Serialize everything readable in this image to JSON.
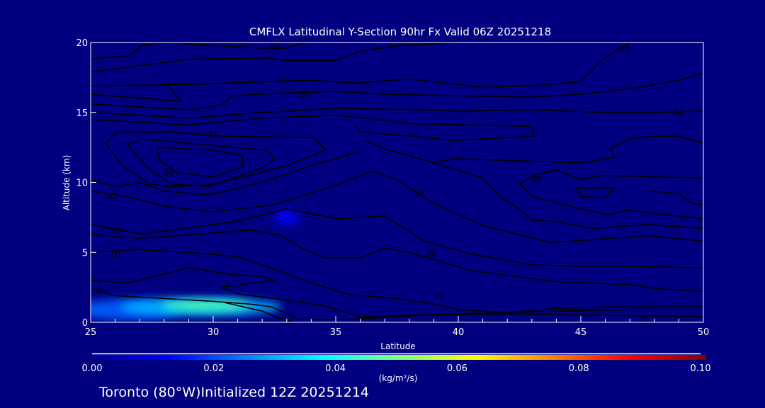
{
  "chart_data": {
    "type": "heatmap",
    "title": "CMFLX Latitudinal Y-Section 90hr  Fx Valid 06Z 20251218",
    "xlabel": "Latitude",
    "ylabel": "Altitude (km)",
    "xlim": [
      25,
      50
    ],
    "ylim": [
      0,
      20
    ],
    "xticks": [
      25,
      30,
      35,
      40,
      45,
      50
    ],
    "xtick_labels": [
      "25",
      "30",
      "35",
      "40",
      "45",
      "50"
    ],
    "yticks": [
      0,
      5,
      10,
      15,
      20
    ],
    "ytick_labels": [
      "0",
      "5",
      "10",
      "15",
      "20"
    ],
    "colorbar": {
      "range": [
        0,
        0.1
      ],
      "tick_labels": [
        "0.00",
        "0.02",
        "0.04",
        "0.06",
        "0.08",
        "0.10"
      ],
      "units": "(kg/m²/s)",
      "colormap": "jet"
    },
    "field_blobs": [
      {
        "lat": 26.5,
        "alt": 0.9,
        "rlat": 2.2,
        "ralt": 0.75,
        "value": 0.022
      },
      {
        "lat": 29.5,
        "alt": 1.1,
        "rlat": 3.3,
        "ralt": 0.65,
        "value": 0.03
      },
      {
        "lat": 29.7,
        "alt": 1.2,
        "rlat": 1.8,
        "ralt": 0.4,
        "value": 0.045
      },
      {
        "lat": 33.0,
        "alt": 7.5,
        "rlat": 0.5,
        "ralt": 0.55,
        "value": 0.012
      }
    ],
    "contours": [
      {
        "level": 10,
        "points": [
          [
            25,
            18.8
          ],
          [
            26.6,
            19.1
          ],
          [
            27.1,
            19.8
          ],
          [
            28.0,
            20
          ],
          [
            32.0,
            19.6
          ],
          [
            33.0,
            19.6
          ],
          [
            33.8,
            20
          ]
        ]
      },
      {
        "level": 10,
        "points": [
          [
            25,
            17.9
          ],
          [
            29.0,
            18.8
          ],
          [
            32.1,
            18.9
          ],
          [
            33.1,
            18.7
          ],
          [
            35.0,
            18.7
          ],
          [
            36.0,
            19.4
          ],
          [
            37.7,
            19.8
          ],
          [
            40.0,
            20
          ]
        ]
      },
      {
        "level": 20,
        "points": [
          [
            25,
            16.9
          ],
          [
            29.0,
            17.0
          ],
          [
            32.1,
            17.2
          ],
          [
            34.0,
            17.3
          ],
          [
            35.8,
            17.1
          ],
          [
            38.0,
            17.4
          ],
          [
            41.0,
            16.8
          ],
          [
            43.0,
            16.9
          ],
          [
            45.0,
            17.2
          ],
          [
            45.9,
            18.8
          ],
          [
            47.0,
            20
          ]
        ]
      },
      {
        "level": 20,
        "points": [
          [
            25,
            16.3
          ],
          [
            28.7,
            15.8
          ],
          [
            28.1,
            17.0
          ],
          [
            30.0,
            17.1
          ]
        ]
      },
      {
        "level": 30,
        "points": [
          [
            25,
            15.6
          ],
          [
            29.0,
            15.2
          ],
          [
            30.3,
            15.5
          ],
          [
            30.8,
            16.2
          ],
          [
            33.0,
            16.4
          ],
          [
            35.0,
            16.5
          ],
          [
            37.0,
            16.3
          ],
          [
            40.0,
            16.2
          ],
          [
            43.0,
            16.1
          ],
          [
            45.0,
            16.3
          ],
          [
            47.0,
            16.7
          ],
          [
            49.0,
            17.3
          ],
          [
            50,
            17.8
          ]
        ]
      },
      {
        "level": 30,
        "points": [
          [
            25,
            15.0
          ],
          [
            29.0,
            14.6
          ],
          [
            32.0,
            15.0
          ],
          [
            35.0,
            15.3
          ],
          [
            38.0,
            15.2
          ],
          [
            40.0,
            15.1
          ],
          [
            43.0,
            15.2
          ],
          [
            46.0,
            15.0
          ],
          [
            48.2,
            15.0
          ],
          [
            50,
            15.1
          ]
        ]
      },
      {
        "level": 30,
        "points": [
          [
            25,
            14.5
          ],
          [
            29.0,
            14.1
          ],
          [
            32.0,
            14.6
          ],
          [
            35.0,
            14.8
          ],
          [
            38.1,
            14.2
          ],
          [
            43.0,
            14.0
          ],
          [
            43.1,
            13.3
          ],
          [
            39.8,
            13.0
          ],
          [
            38.1,
            13.3
          ],
          [
            36.0,
            13.6
          ],
          [
            35.8,
            14.1
          ]
        ]
      },
      {
        "level": 40,
        "points": [
          [
            25.6,
            12.8
          ],
          [
            26.1,
            13.6
          ],
          [
            28.2,
            13.6
          ],
          [
            30.4,
            13.3
          ],
          [
            34.1,
            13.2
          ],
          [
            34.6,
            12.3
          ],
          [
            33.0,
            11.2
          ],
          [
            31.5,
            10.5
          ],
          [
            29.8,
            9.8
          ],
          [
            28.2,
            9.7
          ],
          [
            27.4,
            9.9
          ],
          [
            26.3,
            11.2
          ],
          [
            25.6,
            12.8
          ]
        ]
      },
      {
        "level": 40,
        "points": [
          [
            26.5,
            12.7
          ],
          [
            27.1,
            13.1
          ],
          [
            32.2,
            12.3
          ],
          [
            32.5,
            11.7
          ],
          [
            32.1,
            11.1
          ],
          [
            29.8,
            9.7
          ],
          [
            28.3,
            9.9
          ],
          [
            27.4,
            10.9
          ],
          [
            26.5,
            12.7
          ]
        ]
      },
      {
        "level": 50,
        "points": [
          [
            27.7,
            12.5
          ],
          [
            30.0,
            12.3
          ],
          [
            31.2,
            11.9
          ],
          [
            31.2,
            11.1
          ],
          [
            30.0,
            10.4
          ],
          [
            28.5,
            10.7
          ],
          [
            27.8,
            11.6
          ],
          [
            27.7,
            12.5
          ]
        ]
      },
      {
        "level": 40,
        "points": [
          [
            36.2,
            13.0
          ],
          [
            37.0,
            12.4
          ],
          [
            38.4,
            11.7
          ],
          [
            39.0,
            11.4
          ],
          [
            39.8,
            11.7
          ],
          [
            45.0,
            11.4
          ],
          [
            46.4,
            11.8
          ],
          [
            46.2,
            12.4
          ],
          [
            47.0,
            13.1
          ],
          [
            47.9,
            13.3
          ],
          [
            49.0,
            13.3
          ],
          [
            50,
            12.8
          ]
        ]
      },
      {
        "level": 40,
        "points": [
          [
            39.0,
            11.4
          ],
          [
            41.0,
            10.3
          ],
          [
            41.2,
            9.9
          ],
          [
            41.7,
            9.0
          ],
          [
            42.5,
            8.1
          ],
          [
            43.0,
            7.3
          ],
          [
            44.0,
            7.2
          ],
          [
            45.5,
            6.7
          ],
          [
            47.7,
            7.0
          ],
          [
            50,
            6.7
          ]
        ]
      },
      {
        "level": 40,
        "points": [
          [
            42.5,
            9.9
          ],
          [
            43.1,
            10.5
          ],
          [
            44.0,
            10.9
          ],
          [
            45.0,
            10.2
          ],
          [
            45.9,
            10.5
          ],
          [
            50,
            10.3
          ]
        ]
      },
      {
        "level": 40,
        "points": [
          [
            42.5,
            9.9
          ],
          [
            43.0,
            9.0
          ],
          [
            45.0,
            8.1
          ],
          [
            46.1,
            7.7
          ],
          [
            46.9,
            8.0
          ],
          [
            50,
            7.4
          ]
        ]
      },
      {
        "level": 50,
        "points": [
          [
            44.8,
            9.6
          ],
          [
            46.4,
            9.6
          ],
          [
            46.0,
            8.9
          ],
          [
            45.0,
            9.0
          ],
          [
            44.8,
            9.6
          ]
        ]
      },
      {
        "level": 40,
        "points": [
          [
            47.8,
            9.4
          ],
          [
            49.0,
            9.2
          ],
          [
            49.5,
            8.5
          ],
          [
            50,
            8.4
          ]
        ]
      },
      {
        "level": 30,
        "points": [
          [
            25,
            10.2
          ],
          [
            26.0,
            9.7
          ],
          [
            27.0,
            10.0
          ],
          [
            28.0,
            9.4
          ],
          [
            29.8,
            9.1
          ],
          [
            32.0,
            10.0
          ],
          [
            34.2,
            11.3
          ],
          [
            36.0,
            12.2
          ]
        ]
      },
      {
        "level": 30,
        "points": [
          [
            25,
            9.4
          ],
          [
            26.5,
            9.0
          ],
          [
            28.0,
            8.3
          ],
          [
            30.0,
            7.9
          ],
          [
            32.5,
            8.4
          ],
          [
            35.0,
            9.8
          ],
          [
            36.5,
            10.8
          ],
          [
            37.5,
            10.2
          ],
          [
            38.1,
            9.5
          ],
          [
            39.0,
            8.5
          ],
          [
            41.0,
            6.9
          ],
          [
            43.8,
            5.7
          ],
          [
            47.7,
            6.2
          ],
          [
            50,
            5.8
          ]
        ]
      },
      {
        "level": 20,
        "points": [
          [
            25,
            7.0
          ],
          [
            27.1,
            6.3
          ],
          [
            30.9,
            7.2
          ],
          [
            33.0,
            8.1
          ],
          [
            35.1,
            7.4
          ],
          [
            37.0,
            7.6
          ],
          [
            38.6,
            5.8
          ],
          [
            40.5,
            4.9
          ],
          [
            43.0,
            4.1
          ],
          [
            45.0,
            4.0
          ],
          [
            47.0,
            4.0
          ],
          [
            50,
            3.9
          ]
        ]
      },
      {
        "level": 10,
        "points": [
          [
            25,
            6.3
          ],
          [
            27.0,
            6.0
          ],
          [
            29.5,
            6.3
          ],
          [
            31.5,
            6.6
          ],
          [
            32.8,
            6.2
          ],
          [
            33.6,
            5.3
          ],
          [
            34.5,
            4.6
          ],
          [
            36.0,
            4.6
          ],
          [
            37.0,
            5.3
          ],
          [
            38.0,
            5.0
          ],
          [
            40.5,
            3.7
          ],
          [
            44.0,
            2.9
          ],
          [
            47.0,
            2.7
          ],
          [
            48.1,
            2.4
          ],
          [
            50,
            2.2
          ]
        ]
      },
      {
        "level": 10,
        "points": [
          [
            25,
            5.0
          ],
          [
            27.0,
            5.2
          ],
          [
            29.0,
            5.0
          ],
          [
            31.0,
            4.7
          ],
          [
            32.8,
            3.6
          ],
          [
            34.0,
            2.8
          ],
          [
            35.5,
            2.0
          ],
          [
            37.5,
            1.7
          ],
          [
            39.0,
            1.3
          ],
          [
            40.0,
            0.9
          ],
          [
            42.0,
            0.7
          ],
          [
            44.0,
            1.0
          ],
          [
            46.0,
            1.1
          ],
          [
            48.0,
            1.1
          ],
          [
            50,
            1.1
          ]
        ]
      },
      {
        "level": 0,
        "points": [
          [
            25,
            3.0
          ],
          [
            26.5,
            2.8
          ],
          [
            29.0,
            3.9
          ],
          [
            30.8,
            3.4
          ],
          [
            32.0,
            3.3
          ],
          [
            32.5,
            3.0
          ],
          [
            30.3,
            2.5
          ],
          [
            31.1,
            2.0
          ],
          [
            32.5,
            1.7
          ],
          [
            34.5,
            1.2
          ],
          [
            36.0,
            0.4
          ],
          [
            38.0,
            0.5
          ],
          [
            40.0,
            0.6
          ],
          [
            44.0,
            0.8
          ],
          [
            47.0,
            0.9
          ],
          [
            50,
            0.9
          ]
        ]
      },
      {
        "level": 0,
        "points": [
          [
            25,
            2.4
          ],
          [
            26.0,
            1.9
          ],
          [
            28.0,
            1.7
          ],
          [
            30.0,
            1.5
          ],
          [
            31.5,
            1.3
          ],
          [
            32.4,
            1.1
          ],
          [
            33.0,
            0.6
          ],
          [
            33.5,
            0.2
          ],
          [
            35.5,
            0.2
          ],
          [
            38.5,
            0.5
          ],
          [
            42.0,
            0.6
          ],
          [
            46.0,
            0.5
          ],
          [
            50,
            0.4
          ]
        ]
      },
      {
        "level": 0,
        "points": [
          [
            30.5,
            1.4
          ],
          [
            32.0,
            0.8
          ],
          [
            32.7,
            0.3
          ],
          [
            33.3,
            0.0
          ]
        ]
      }
    ],
    "contour_labels": [
      {
        "text": "10",
        "lat": 32.5,
        "alt": 19.7
      },
      {
        "text": "20",
        "lat": 32.8,
        "alt": 17.3
      },
      {
        "text": "30",
        "lat": 33.7,
        "alt": 16.3
      },
      {
        "text": "40",
        "lat": 30.0,
        "alt": 13.4
      },
      {
        "text": "50",
        "lat": 28.2,
        "alt": 10.7
      },
      {
        "text": "20",
        "lat": 46.8,
        "alt": 19.5
      },
      {
        "text": "30",
        "lat": 49.0,
        "alt": 15.0
      },
      {
        "text": "40",
        "lat": 43.2,
        "alt": 10.2
      },
      {
        "text": "30",
        "lat": 25.8,
        "alt": 9.0
      },
      {
        "text": "30",
        "lat": 38.4,
        "alt": 9.2
      },
      {
        "text": "20",
        "lat": 26.0,
        "alt": 6.5
      },
      {
        "text": "20",
        "lat": 38.9,
        "alt": 4.9
      },
      {
        "text": "10",
        "lat": 26.0,
        "alt": 4.8
      },
      {
        "text": "10",
        "lat": 39.2,
        "alt": 1.9
      },
      {
        "text": "0",
        "lat": 25.4,
        "alt": 2.3
      },
      {
        "text": "0",
        "lat": 47.6,
        "alt": 0.2
      }
    ]
  },
  "footer": {
    "location_text": "Toronto (80°W)Initialized 12Z 20251214"
  },
  "colors": {
    "background": "#000080",
    "contour": "#000000",
    "axis": "#ffffff"
  }
}
